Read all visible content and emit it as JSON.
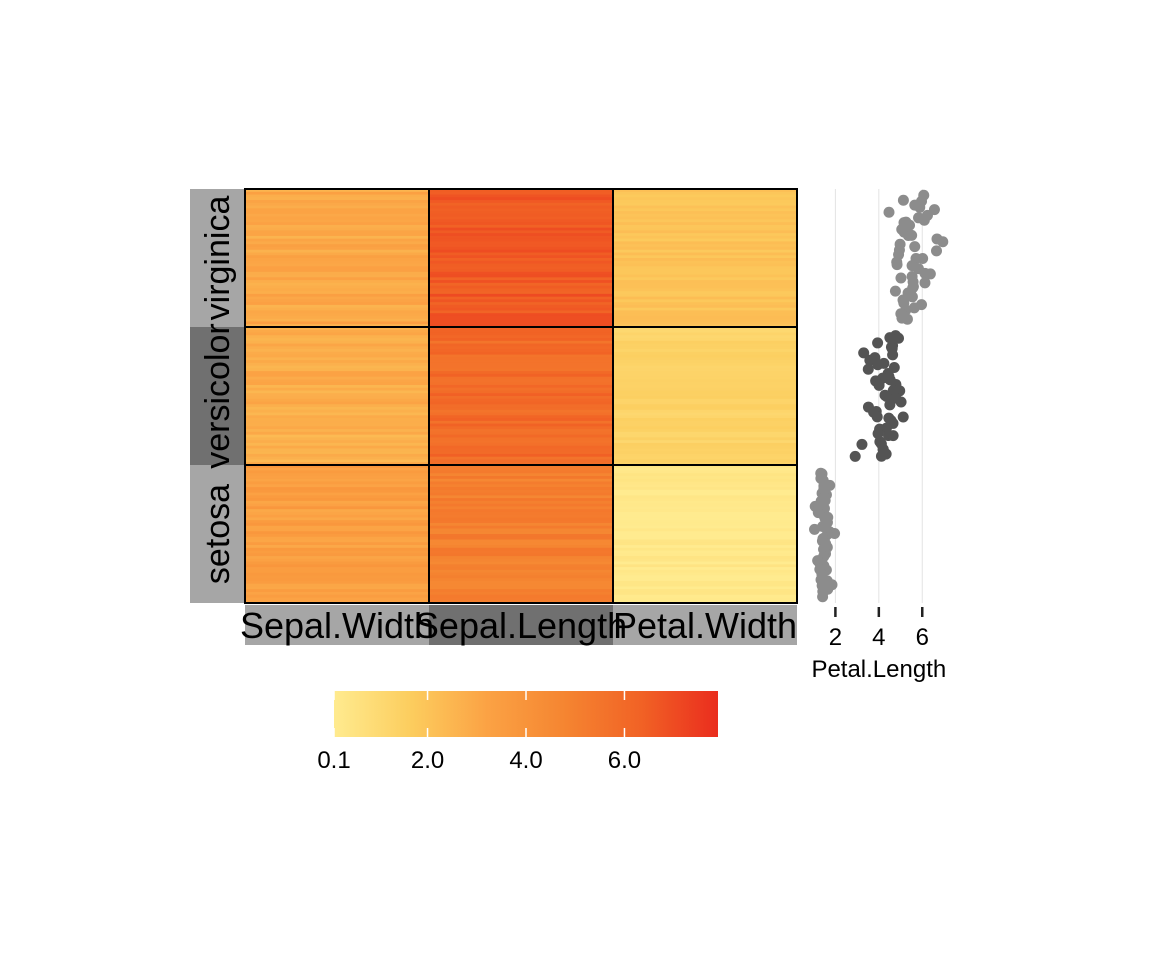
{
  "chart_data": [
    {
      "type": "heatmap",
      "title": "",
      "row_groups": [
        "virginica",
        "versicolor",
        "setosa"
      ],
      "row_group_colors": [
        "#a6a6a6",
        "#707070",
        "#a6a6a6"
      ],
      "columns": [
        "Sepal.Width",
        "Sepal.Length",
        "Petal.Width"
      ],
      "column_colors": [
        "#a6a6a6",
        "#707070",
        "#a6a6a6"
      ],
      "mean_values": {
        "virginica": {
          "Sepal.Width": 2.97,
          "Sepal.Length": 6.59,
          "Petal.Width": 2.03
        },
        "versicolor": {
          "Sepal.Width": 2.77,
          "Sepal.Length": 5.94,
          "Petal.Width": 1.33
        },
        "setosa": {
          "Sepal.Width": 3.43,
          "Sepal.Length": 5.01,
          "Petal.Width": 0.25
        }
      },
      "color_scale": {
        "colors": [
          "#ffeb8f",
          "#fccd5e",
          "#fba244",
          "#f58531",
          "#f16225",
          "#ea2d1e"
        ],
        "domain": [
          0.1,
          7.9
        ],
        "tick_labels": [
          "0.1",
          "2.0",
          "4.0",
          "6.0"
        ],
        "tick_values": [
          0.1,
          2.0,
          4.0,
          6.0
        ]
      }
    },
    {
      "type": "scatter",
      "xlabel": "Petal.Length",
      "x_ticks": [
        2,
        4,
        6
      ],
      "xlim": [
        0.6,
        7.6
      ],
      "grid": true,
      "group_colors": {
        "virginica": "#8c8c8c",
        "versicolor": "#545454",
        "setosa": "#8c8c8c"
      },
      "values_by_group": {
        "virginica": [
          6.0,
          5.1,
          5.9,
          5.6,
          5.8,
          6.6,
          4.5,
          6.3,
          5.8,
          6.1,
          5.1,
          5.3,
          5.5,
          5.0,
          5.1,
          5.3,
          5.5,
          6.7,
          6.9,
          5.0,
          5.7,
          4.9,
          6.7,
          4.9,
          5.7,
          6.0,
          4.8,
          4.9,
          5.6,
          5.8,
          6.1,
          6.4,
          5.6,
          5.1,
          5.6,
          6.1,
          5.6,
          5.5,
          4.8,
          5.4,
          5.6,
          5.1,
          5.1,
          5.9,
          5.7,
          5.2,
          5.0,
          5.2,
          5.4,
          5.1
        ],
        "versicolor": [
          4.7,
          4.5,
          4.9,
          4.0,
          4.6,
          4.5,
          4.7,
          3.3,
          4.6,
          3.9,
          3.5,
          4.2,
          4.0,
          4.7,
          3.6,
          4.4,
          4.5,
          4.1,
          4.5,
          3.9,
          4.8,
          4.0,
          4.9,
          4.7,
          4.3,
          4.4,
          4.8,
          5.0,
          4.5,
          3.5,
          3.8,
          3.7,
          3.9,
          5.1,
          4.5,
          4.5,
          4.7,
          4.4,
          4.1,
          4.0,
          4.4,
          4.6,
          4.0,
          3.3,
          4.2,
          4.2,
          4.2,
          4.3,
          3.0,
          4.1
        ],
        "setosa": [
          1.4,
          1.4,
          1.3,
          1.5,
          1.4,
          1.7,
          1.4,
          1.5,
          1.4,
          1.5,
          1.5,
          1.6,
          1.4,
          1.1,
          1.2,
          1.5,
          1.3,
          1.4,
          1.7,
          1.5,
          1.7,
          1.5,
          1.0,
          1.7,
          1.9,
          1.6,
          1.6,
          1.5,
          1.4,
          1.6,
          1.6,
          1.5,
          1.5,
          1.4,
          1.5,
          1.2,
          1.3,
          1.4,
          1.3,
          1.5,
          1.3,
          1.3,
          1.3,
          1.6,
          1.9,
          1.4,
          1.6,
          1.4,
          1.5,
          1.4
        ]
      }
    }
  ]
}
